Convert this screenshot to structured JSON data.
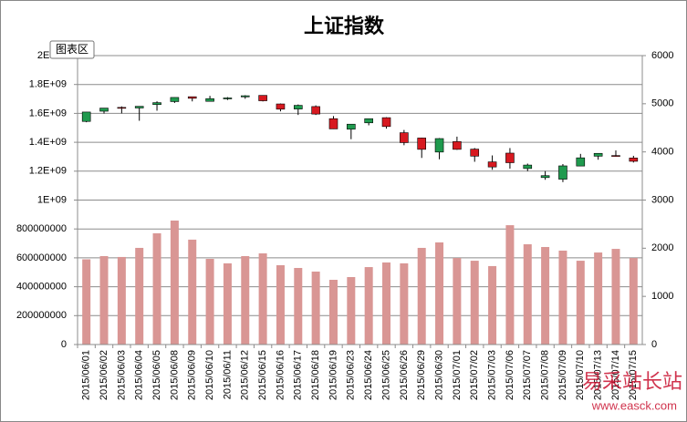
{
  "chart_data": {
    "type": "stock-volume",
    "title": "上证指数",
    "tooltip": "图表区",
    "watermark": "易采站长站",
    "watermark_url": "www.easck.com",
    "categories": [
      "2015/06/01",
      "2015/06/02",
      "2015/06/03",
      "2015/06/04",
      "2015/06/05",
      "2015/06/08",
      "2015/06/09",
      "2015/06/10",
      "2015/06/11",
      "2015/06/12",
      "2015/06/15",
      "2015/06/16",
      "2015/06/17",
      "2015/06/18",
      "2015/06/19",
      "2015/06/23",
      "2015/06/24",
      "2015/06/25",
      "2015/06/26",
      "2015/06/29",
      "2015/06/30",
      "2015/07/01",
      "2015/07/02",
      "2015/07/03",
      "2015/07/06",
      "2015/07/07",
      "2015/07/08",
      "2015/07/09",
      "2015/07/10",
      "2015/07/13",
      "2015/07/14",
      "2015/07/15"
    ],
    "volume": {
      "color": "#d99694",
      "values": [
        590000000,
        612000000,
        606000000,
        669000000,
        770000000,
        858000000,
        726000000,
        593000000,
        562000000,
        612000000,
        631000000,
        549000000,
        530000000,
        505000000,
        448000000,
        467000000,
        536000000,
        568000000,
        562000000,
        669000000,
        707000000,
        599000000,
        580000000,
        543000000,
        826000000,
        694000000,
        675000000,
        650000000,
        580000000,
        637000000,
        662000000,
        599000000
      ]
    },
    "ohlc": {
      "axis": "y2",
      "up_color": "#1f9a4e",
      "down_color": "#d71920",
      "open": [
        4633,
        4845,
        4924,
        4912,
        4983,
        5045,
        5146,
        5050,
        5101,
        5143,
        5174,
        4996,
        4890,
        4942,
        4690,
        4471,
        4604,
        4711,
        4399,
        4289,
        3997,
        4214,
        4058,
        3793,
        3975,
        3655,
        3467,
        3433,
        3707,
        3911,
        3925,
        3874
      ],
      "high": [
        4829,
        4911,
        4945,
        4947,
        5051,
        5131,
        5147,
        5164,
        5138,
        5178,
        5176,
        5005,
        4985,
        4966,
        4744,
        4577,
        4691,
        4720,
        4456,
        4297,
        4287,
        4317,
        4080,
        3927,
        4080,
        3757,
        3602,
        3748,
        3959,
        3975,
        4031,
        3919
      ],
      "low": [
        4616,
        4797,
        4800,
        4647,
        4856,
        5017,
        5049,
        5052,
        5078,
        5103,
        5048,
        4842,
        4767,
        4767,
        4476,
        4264,
        4552,
        4483,
        4139,
        3875,
        3847,
        4043,
        3795,
        3629,
        3653,
        3601,
        3421,
        3373,
        3707,
        3838,
        3900,
        3780
      ],
      "close": [
        4828,
        4910,
        4910,
        4947,
        5023,
        5131,
        5113,
        5106,
        5121,
        5166,
        5062,
        4887,
        4967,
        4786,
        4478,
        4576,
        4690,
        4527,
        4193,
        4053,
        4277,
        4053,
        3912,
        3687,
        3776,
        3727,
        3507,
        3710,
        3877,
        3970,
        3924,
        3805
      ]
    },
    "ylim": [
      0,
      2000000000
    ],
    "yticks": [
      0,
      200000000,
      400000000,
      600000000,
      800000000,
      {
        "value": 1000000000,
        "label": "1E+09"
      },
      {
        "value": 1200000000,
        "label": "1.2E+09"
      },
      {
        "value": 1400000000,
        "label": "1.4E+09"
      },
      {
        "value": 1600000000,
        "label": "1.6E+09"
      },
      {
        "value": 1800000000,
        "label": "1.8E+09"
      },
      {
        "value": 2000000000,
        "label": "2E+09"
      }
    ],
    "y2lim": [
      0,
      6000
    ],
    "y2ticks": [
      0,
      1000,
      2000,
      3000,
      4000,
      5000,
      6000
    ],
    "grid": true
  }
}
